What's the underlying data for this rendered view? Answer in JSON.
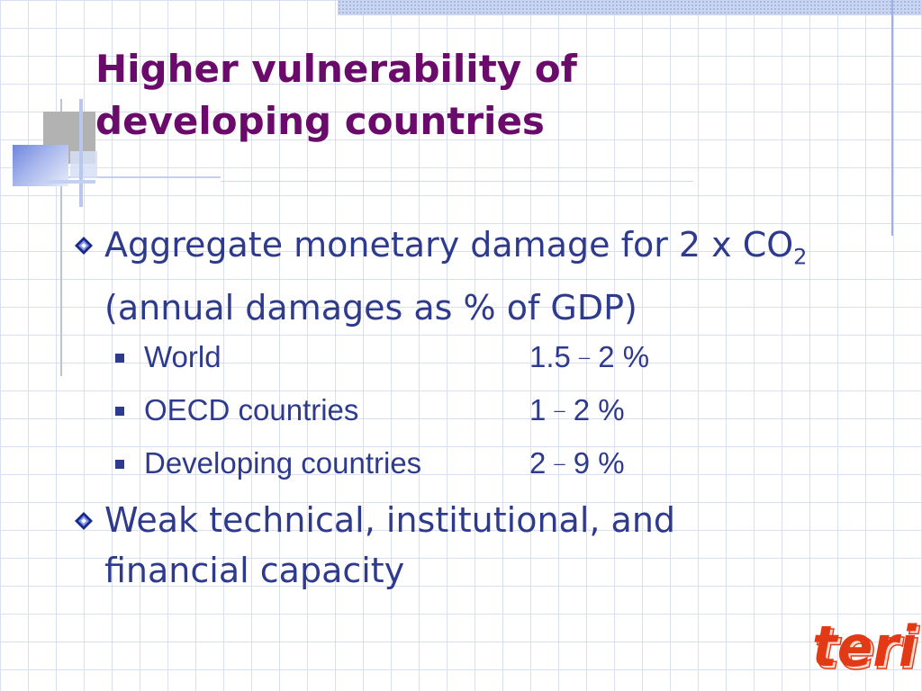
{
  "slide": {
    "title_line1": "Higher vulnerability of",
    "title_line2": "developing countries",
    "bullet1": {
      "text_before_sub": "Aggregate monetary damage for 2 x CO",
      "subscript": "2",
      "text_after_sub": " (annual damages as % of GDP)"
    },
    "rows": [
      {
        "label": "World",
        "low": "1.5",
        "dash": "–",
        "high": "2 %"
      },
      {
        "label": "OECD countries",
        "low": "1",
        "dash": "–",
        "high": "2 %"
      },
      {
        "label": "Developing countries",
        "low": "2",
        "dash": "–",
        "high": "9 %"
      }
    ],
    "bullet2": {
      "line1": "Weak technical, institutional, and",
      "line2": "financial capacity"
    },
    "logo_text": "teri"
  },
  "colors": {
    "title": "#6a0a6a",
    "body": "#2e3a8c",
    "logo": "#e23a16"
  }
}
